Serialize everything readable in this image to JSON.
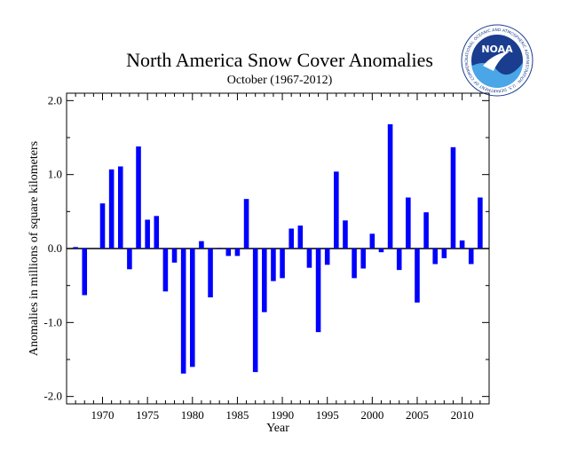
{
  "logo": {
    "text": "NOAA",
    "ring_text": "NATIONAL OCEANIC AND ATMOSPHERIC ADMINISTRATION · U.S. DEPARTMENT OF COMMERCE"
  },
  "chart_data": {
    "type": "bar",
    "title": "North America Snow Cover Anomalies",
    "subtitle": "October (1967-2012)",
    "xlabel": "Year",
    "ylabel": "Anomalies in millions of square kilometers",
    "xlim": [
      1966,
      2013
    ],
    "ylim": [
      -2.1,
      2.1
    ],
    "x_ticks": [
      1970,
      1975,
      1980,
      1985,
      1990,
      1995,
      2000,
      2005,
      2010
    ],
    "y_ticks": [
      -2.0,
      -1.0,
      0.0,
      1.0,
      2.0
    ],
    "y_tick_labels": [
      "-2.0",
      "-1.0",
      "0.0",
      "1.0",
      "2.0"
    ],
    "bar_color": "#0000ff",
    "years": [
      1967,
      1968,
      1969,
      1970,
      1971,
      1972,
      1973,
      1974,
      1975,
      1976,
      1977,
      1978,
      1979,
      1980,
      1981,
      1982,
      1983,
      1984,
      1985,
      1986,
      1987,
      1988,
      1989,
      1990,
      1991,
      1992,
      1993,
      1994,
      1995,
      1996,
      1997,
      1998,
      1999,
      2000,
      2001,
      2002,
      2003,
      2004,
      2005,
      2006,
      2007,
      2008,
      2009,
      2010,
      2011,
      2012
    ],
    "values": [
      0.02,
      -0.63,
      null,
      0.61,
      1.07,
      1.11,
      -0.28,
      1.38,
      0.39,
      0.44,
      -0.58,
      -0.19,
      -1.69,
      -1.6,
      0.1,
      -0.66,
      0.01,
      -0.1,
      -0.1,
      0.67,
      -1.67,
      -0.86,
      -0.44,
      -0.4,
      0.27,
      0.31,
      -0.26,
      -1.13,
      -0.22,
      1.04,
      0.38,
      -0.4,
      -0.27,
      0.2,
      -0.05,
      1.68,
      -0.29,
      0.69,
      -0.73,
      0.49,
      -0.21,
      -0.13,
      1.37,
      0.11,
      -0.21,
      0.69
    ]
  }
}
